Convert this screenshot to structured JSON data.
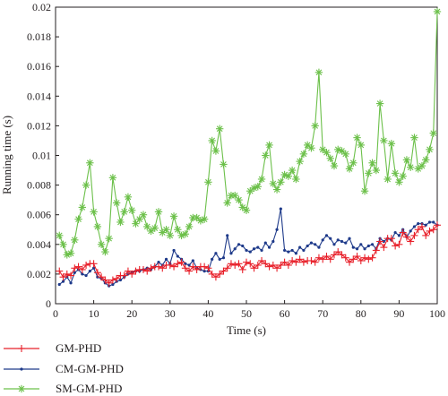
{
  "chart_data": {
    "type": "line",
    "title": "",
    "xlabel": "Time (s)",
    "ylabel": "Running time (s)",
    "xlim": [
      0,
      100
    ],
    "ylim": [
      0,
      0.02
    ],
    "xticks": [
      "0",
      "10",
      "20",
      "30",
      "40",
      "50",
      "60",
      "70",
      "80",
      "90",
      "100"
    ],
    "yticks": [
      "0",
      "0.002",
      "0.004",
      "0.006",
      "0.008",
      "0.01",
      "0.012",
      "0.014",
      "0.016",
      "0.018",
      "0.02"
    ],
    "grid": false,
    "legend_position": "bottom-left",
    "x": [
      1,
      2,
      3,
      4,
      5,
      6,
      7,
      8,
      9,
      10,
      11,
      12,
      13,
      14,
      15,
      16,
      17,
      18,
      19,
      20,
      21,
      22,
      23,
      24,
      25,
      26,
      27,
      28,
      29,
      30,
      31,
      32,
      33,
      34,
      35,
      36,
      37,
      38,
      39,
      40,
      41,
      42,
      43,
      44,
      45,
      46,
      47,
      48,
      49,
      50,
      51,
      52,
      53,
      54,
      55,
      56,
      57,
      58,
      59,
      60,
      61,
      62,
      63,
      64,
      65,
      66,
      67,
      68,
      69,
      70,
      71,
      72,
      73,
      74,
      75,
      76,
      77,
      78,
      79,
      80,
      81,
      82,
      83,
      84,
      85,
      86,
      87,
      88,
      89,
      90,
      91,
      92,
      93,
      94,
      95,
      96,
      97,
      98,
      99,
      100
    ],
    "series": [
      {
        "name": "GM-PHD",
        "color": "#e8202a",
        "marker": "plus",
        "values": [
          0.0022,
          0.0018,
          0.002,
          0.0019,
          0.0024,
          0.0025,
          0.0023,
          0.0026,
          0.0027,
          0.0027,
          0.0021,
          0.0018,
          0.0016,
          0.0014,
          0.0016,
          0.0017,
          0.0019,
          0.0019,
          0.0022,
          0.002,
          0.0022,
          0.0023,
          0.0023,
          0.0022,
          0.0024,
          0.0025,
          0.0025,
          0.0024,
          0.0026,
          0.0026,
          0.0025,
          0.0027,
          0.0028,
          0.0024,
          0.0022,
          0.0025,
          0.0023,
          0.0025,
          0.0025,
          0.0024,
          0.002,
          0.0018,
          0.002,
          0.0022,
          0.0024,
          0.0027,
          0.0026,
          0.0027,
          0.0023,
          0.0028,
          0.0027,
          0.0024,
          0.0026,
          0.0029,
          0.0027,
          0.0025,
          0.0026,
          0.0024,
          0.0026,
          0.0028,
          0.0026,
          0.0029,
          0.0028,
          0.003,
          0.0028,
          0.0029,
          0.0029,
          0.0028,
          0.0031,
          0.003,
          0.0032,
          0.003,
          0.0033,
          0.0035,
          0.0033,
          0.0031,
          0.0028,
          0.003,
          0.0032,
          0.0029,
          0.0031,
          0.003,
          0.0031,
          0.0036,
          0.0042,
          0.0038,
          0.0044,
          0.0044,
          0.0039,
          0.004,
          0.0048,
          0.0045,
          0.0042,
          0.0046,
          0.005,
          0.0052,
          0.0046,
          0.0049,
          0.005,
          0.0053
        ]
      },
      {
        "name": "CM-GM-PHD",
        "color": "#1e3a8a",
        "marker": "dot",
        "values": [
          0.0013,
          0.0015,
          0.0018,
          0.0014,
          0.0021,
          0.0023,
          0.002,
          0.0019,
          0.0022,
          0.0024,
          0.0018,
          0.0017,
          0.0014,
          0.0012,
          0.0013,
          0.0015,
          0.0016,
          0.0018,
          0.002,
          0.0021,
          0.0022,
          0.0022,
          0.0023,
          0.0024,
          0.0023,
          0.0025,
          0.0028,
          0.0026,
          0.003,
          0.0027,
          0.0036,
          0.0032,
          0.003,
          0.0027,
          0.0026,
          0.0029,
          0.0024,
          0.0023,
          0.0022,
          0.0022,
          0.003,
          0.0034,
          0.003,
          0.0031,
          0.0046,
          0.0034,
          0.0037,
          0.004,
          0.0039,
          0.0036,
          0.0035,
          0.0037,
          0.0038,
          0.0036,
          0.0041,
          0.0038,
          0.0042,
          0.005,
          0.0064,
          0.0036,
          0.0035,
          0.0036,
          0.0034,
          0.0038,
          0.0036,
          0.0039,
          0.0041,
          0.004,
          0.0038,
          0.0043,
          0.0046,
          0.0044,
          0.004,
          0.0043,
          0.0042,
          0.0041,
          0.0044,
          0.0038,
          0.0037,
          0.004,
          0.0037,
          0.0039,
          0.004,
          0.0037,
          0.0044,
          0.0042,
          0.0044,
          0.0043,
          0.0048,
          0.0046,
          0.005,
          0.0045,
          0.0049,
          0.0052,
          0.0054,
          0.0054,
          0.0053,
          0.0055,
          0.0055,
          0.0053
        ]
      },
      {
        "name": "SM-GM-PHD",
        "color": "#6cc04a",
        "marker": "asterisk",
        "values": [
          0.0046,
          0.004,
          0.0033,
          0.0034,
          0.0043,
          0.0057,
          0.0065,
          0.008,
          0.0095,
          0.0062,
          0.0052,
          0.004,
          0.0035,
          0.0044,
          0.0085,
          0.0068,
          0.0055,
          0.0062,
          0.0072,
          0.0063,
          0.0054,
          0.0057,
          0.006,
          0.0052,
          0.0049,
          0.0051,
          0.0062,
          0.0048,
          0.005,
          0.0046,
          0.0059,
          0.005,
          0.0046,
          0.0047,
          0.0052,
          0.0058,
          0.0058,
          0.0056,
          0.0057,
          0.0082,
          0.011,
          0.0103,
          0.0118,
          0.0094,
          0.0068,
          0.0073,
          0.0073,
          0.007,
          0.0065,
          0.0063,
          0.0076,
          0.0078,
          0.0079,
          0.0084,
          0.01,
          0.0107,
          0.0081,
          0.0077,
          0.0082,
          0.0087,
          0.0086,
          0.009,
          0.0084,
          0.0096,
          0.0101,
          0.0107,
          0.0105,
          0.012,
          0.0156,
          0.0104,
          0.0102,
          0.0098,
          0.0093,
          0.0104,
          0.0103,
          0.0101,
          0.0091,
          0.0095,
          0.0112,
          0.0107,
          0.0076,
          0.0088,
          0.0095,
          0.009,
          0.0135,
          0.011,
          0.0084,
          0.0108,
          0.0088,
          0.0082,
          0.0086,
          0.0097,
          0.0092,
          0.0112,
          0.0091,
          0.0093,
          0.0097,
          0.0104,
          0.0115,
          0.0197
        ]
      }
    ]
  }
}
